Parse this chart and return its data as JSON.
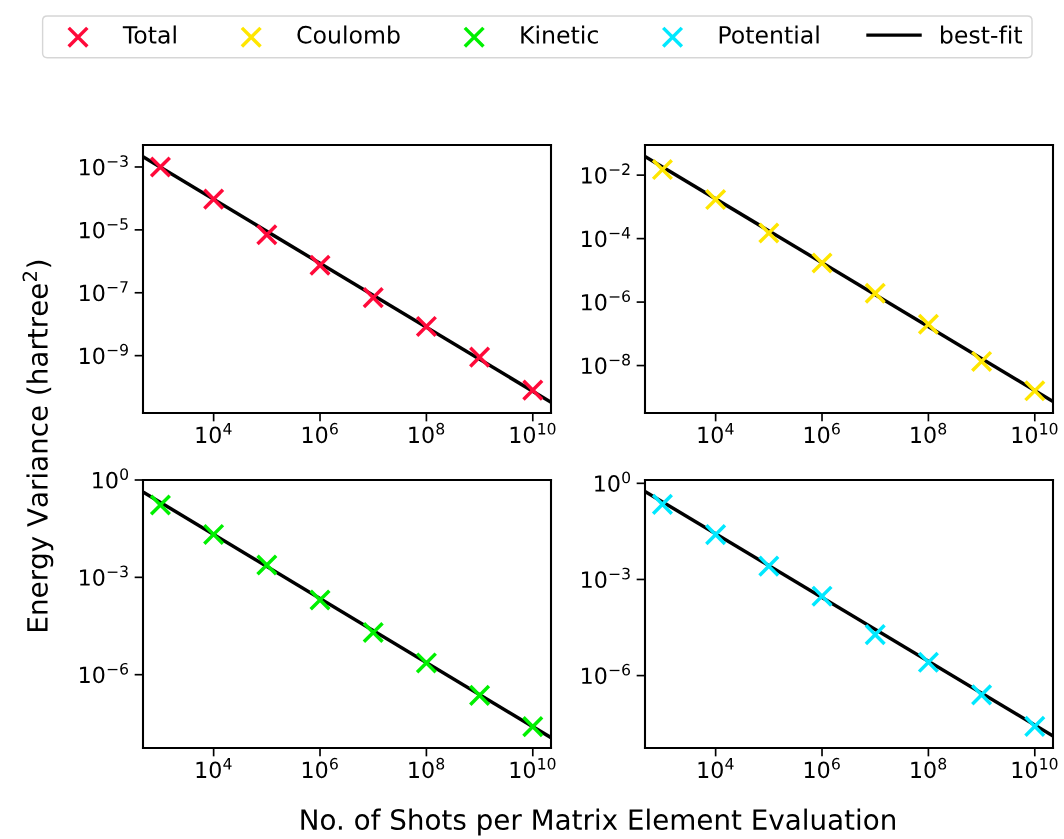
{
  "chart_data": [
    {
      "type": "scatter",
      "xlabel": "No. of Shots per Matrix Element Evaluation",
      "ylabel": "Energy Variance (hartree$^{2}$)",
      "log": "xy",
      "legend": "top",
      "grid": false,
      "xlim": [
        470,
        22000000000.0
      ],
      "xticks": [
        {
          "value": 10000.0,
          "label": "10$^{4}$"
        },
        {
          "value": 1000000.0,
          "label": "10$^{6}$"
        },
        {
          "value": 100000000.0,
          "label": "10$^{8}$"
        },
        {
          "value": 10000000000.0,
          "label": "10$^{10}$"
        }
      ],
      "ylim": [
        1.5e-11,
        0.005
      ],
      "yticks": [
        {
          "value": 0.001,
          "label": "10$^{−3}$"
        },
        {
          "value": 1e-05,
          "label": "10$^{−5}$"
        },
        {
          "value": 1e-07,
          "label": "10$^{−7}$"
        },
        {
          "value": 1e-09,
          "label": "10$^{−9}$"
        }
      ],
      "series": [
        {
          "name": "Total",
          "marker": "cross",
          "color": "#ff0a3a",
          "x": [
            1000.0,
            10000.0,
            100000.0,
            1000000.0,
            10000000.0,
            100000000.0,
            1000000000.0,
            10000000000.0
          ],
          "values": [
            0.001,
            9.5e-05,
            7e-06,
            7.5e-07,
            7e-08,
            8.5e-09,
            9e-10,
            8e-11
          ]
        },
        {
          "name": "best-fit",
          "type": "line",
          "color": "#000000",
          "line_style": "solid",
          "x": [
            470,
            22000000000.0
          ],
          "values": [
            0.0021,
            3.3e-11
          ]
        }
      ]
    },
    {
      "type": "scatter",
      "log": "xy",
      "legend": "top",
      "grid": false,
      "xlim": [
        470,
        22000000000.0
      ],
      "xticks": [
        {
          "value": 10000.0,
          "label": "10$^{4}$"
        },
        {
          "value": 1000000.0,
          "label": "10$^{6}$"
        },
        {
          "value": 100000000.0,
          "label": "10$^{8}$"
        },
        {
          "value": 10000000000.0,
          "label": "10$^{10}$"
        }
      ],
      "ylim": [
        3.2e-10,
        0.089
      ],
      "yticks": [
        {
          "value": 0.01,
          "label": "10$^{−2}$"
        },
        {
          "value": 0.0001,
          "label": "10$^{−4}$"
        },
        {
          "value": 1e-06,
          "label": "10$^{−6}$"
        },
        {
          "value": 1e-08,
          "label": "10$^{−8}$"
        }
      ],
      "series": [
        {
          "name": "Coulomb",
          "marker": "cross",
          "color": "#ffe600",
          "x": [
            1000.0,
            10000.0,
            100000.0,
            1000000.0,
            10000000.0,
            100000000.0,
            1000000000.0,
            10000000000.0
          ],
          "values": [
            0.015,
            0.0017,
            0.00015,
            1.7e-05,
            1.9e-06,
            2e-07,
            1.35e-08,
            1.6e-09
          ]
        },
        {
          "type": "line",
          "color": "#000000",
          "line_style": "solid",
          "x": [
            470,
            22000000000.0
          ],
          "values": [
            0.039,
            7.4e-10
          ]
        }
      ]
    },
    {
      "type": "scatter",
      "log": "xy",
      "legend": "top",
      "grid": false,
      "xlim": [
        470,
        22000000000.0
      ],
      "xticks": [
        {
          "value": 10000.0,
          "label": "10$^{4}$"
        },
        {
          "value": 1000000.0,
          "label": "10$^{6}$"
        },
        {
          "value": 100000000.0,
          "label": "10$^{8}$"
        },
        {
          "value": 10000000000.0,
          "label": "10$^{10}$"
        }
      ],
      "ylim": [
        5.5e-09,
        1
      ],
      "yticks": [
        {
          "value": 1,
          "label": "10$^{0}$"
        },
        {
          "value": 0.001,
          "label": "10$^{−3}$"
        },
        {
          "value": 1e-06,
          "label": "10$^{−6}$"
        }
      ],
      "series": [
        {
          "name": "Kinetic",
          "marker": "cross",
          "color": "#00f000",
          "x": [
            1000.0,
            10000.0,
            100000.0,
            1000000.0,
            10000000.0,
            100000000.0,
            1000000000.0,
            10000000000.0
          ],
          "values": [
            0.17,
            0.021,
            0.0024,
            0.0002,
            2e-05,
            2.3e-06,
            2.3e-07,
            2.5e-08
          ]
        },
        {
          "type": "line",
          "color": "#000000",
          "line_style": "solid",
          "x": [
            470,
            22000000000.0
          ],
          "values": [
            0.43,
            1.15e-08
          ]
        }
      ]
    },
    {
      "type": "scatter",
      "log": "xy",
      "legend": "top",
      "grid": false,
      "xlim": [
        470,
        22000000000.0
      ],
      "xticks": [
        {
          "value": 10000.0,
          "label": "10$^{4}$"
        },
        {
          "value": 1000000.0,
          "label": "10$^{6}$"
        },
        {
          "value": 100000000.0,
          "label": "10$^{8}$"
        },
        {
          "value": 10000000000.0,
          "label": "10$^{10}$"
        }
      ],
      "ylim": [
        5.5e-09,
        1.27
      ],
      "yticks": [
        {
          "value": 1,
          "label": "10$^{0}$"
        },
        {
          "value": 0.001,
          "label": "10$^{−3}$"
        },
        {
          "value": 1e-06,
          "label": "10$^{−6}$"
        }
      ],
      "series": [
        {
          "name": "Potential",
          "marker": "cross",
          "color": "#00e8ff",
          "x": [
            1000.0,
            10000.0,
            100000.0,
            1000000.0,
            10000000.0,
            100000000.0,
            1000000000.0,
            10000000000.0
          ],
          "values": [
            0.22,
            0.025,
            0.0026,
            0.0003,
            1.9e-05,
            2.6e-06,
            2.5e-07,
            2.6e-08
          ]
        },
        {
          "type": "line",
          "color": "#000000",
          "line_style": "solid",
          "x": [
            470,
            22000000000.0
          ],
          "values": [
            0.56,
            1.3e-08
          ]
        }
      ]
    }
  ]
}
